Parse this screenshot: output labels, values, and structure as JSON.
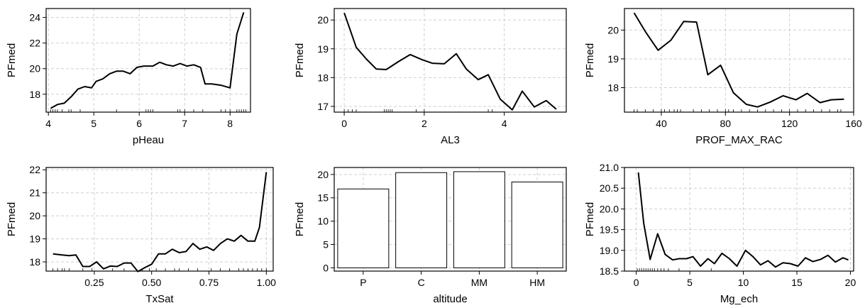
{
  "chart_data": [
    {
      "type": "line",
      "xlabel": "pHeau",
      "ylabel": "PFmed",
      "xlim": [
        3.95,
        8.45
      ],
      "ylim": [
        16.6,
        24.7
      ],
      "xticks": [
        4,
        5,
        6,
        7,
        8
      ],
      "yticks": [
        18,
        20,
        22,
        24
      ],
      "grid": true,
      "x": [
        4.05,
        4.2,
        4.35,
        4.5,
        4.65,
        4.8,
        4.95,
        5.05,
        5.2,
        5.35,
        5.5,
        5.65,
        5.8,
        5.95,
        6.1,
        6.3,
        6.45,
        6.6,
        6.75,
        6.9,
        7.05,
        7.2,
        7.35,
        7.45,
        7.6,
        7.8,
        8.0,
        8.15,
        8.3
      ],
      "y": [
        16.9,
        17.2,
        17.3,
        17.8,
        18.4,
        18.6,
        18.5,
        19.0,
        19.2,
        19.6,
        19.8,
        19.8,
        19.6,
        20.1,
        20.2,
        20.2,
        20.5,
        20.3,
        20.2,
        20.4,
        20.2,
        20.3,
        20.1,
        18.8,
        18.8,
        18.7,
        18.5,
        22.7,
        24.4
      ],
      "rug": [
        4.05,
        4.1,
        4.15,
        4.2,
        4.3,
        4.45,
        4.5,
        4.7,
        5.5,
        6.15,
        6.2,
        6.25,
        6.3,
        6.85,
        6.9,
        7.0,
        7.2,
        7.4,
        7.8,
        7.9,
        8.0,
        8.15,
        8.2,
        8.25,
        8.3,
        8.35
      ]
    },
    {
      "type": "line",
      "xlabel": "AL3",
      "ylabel": "PFmed",
      "xlim": [
        -0.25,
        5.55
      ],
      "ylim": [
        16.8,
        20.4
      ],
      "xticks": [
        0,
        2,
        4
      ],
      "yticks": [
        17,
        18,
        19,
        20
      ],
      "grid": true,
      "x": [
        0.0,
        0.3,
        0.55,
        0.8,
        1.05,
        1.35,
        1.65,
        1.95,
        2.2,
        2.5,
        2.8,
        3.05,
        3.35,
        3.6,
        3.9,
        4.2,
        4.45,
        4.75,
        5.05,
        5.3
      ],
      "y": [
        20.25,
        19.05,
        18.65,
        18.3,
        18.28,
        18.55,
        18.8,
        18.62,
        18.5,
        18.48,
        18.83,
        18.3,
        17.93,
        18.1,
        17.25,
        16.88,
        17.53,
        16.98,
        17.2,
        16.9
      ],
      "rug": [
        0.0,
        0.1,
        0.2,
        0.3,
        1.0,
        1.05,
        1.1,
        1.15,
        1.2,
        1.8,
        2.0,
        3.6,
        3.7
      ]
    },
    {
      "type": "line",
      "xlabel": "PROF_MAX_RAC",
      "ylabel": "PFmed",
      "xlim": [
        17,
        160
      ],
      "ylim": [
        17.15,
        20.75
      ],
      "xticks": [
        40,
        80,
        120,
        160
      ],
      "yticks": [
        18,
        19,
        20
      ],
      "grid": true,
      "x": [
        23,
        30,
        38,
        46,
        54,
        62,
        69,
        77,
        85,
        93,
        100,
        108,
        116,
        124,
        131,
        139,
        146,
        154
      ],
      "y": [
        20.6,
        19.95,
        19.3,
        19.65,
        20.3,
        20.28,
        18.45,
        18.78,
        17.82,
        17.42,
        17.33,
        17.5,
        17.72,
        17.58,
        17.8,
        17.48,
        17.58,
        17.6
      ],
      "rug": [
        23,
        25,
        30,
        35,
        40,
        42,
        45,
        48,
        50,
        52,
        60,
        65,
        70,
        75,
        80,
        82,
        85,
        90,
        95,
        100,
        105,
        110,
        115,
        120,
        125,
        130,
        135,
        140,
        145,
        150,
        152
      ]
    },
    {
      "type": "line",
      "xlabel": "TxSat",
      "ylabel": "PFmed",
      "xlim": [
        0.04,
        1.03
      ],
      "ylim": [
        17.6,
        22.1
      ],
      "xticks": [
        "0.25",
        "0.50",
        "0.75",
        "1.00"
      ],
      "yticks": [
        18,
        19,
        20,
        21,
        22
      ],
      "grid": true,
      "x": [
        0.07,
        0.11,
        0.14,
        0.17,
        0.2,
        0.23,
        0.26,
        0.29,
        0.32,
        0.35,
        0.38,
        0.41,
        0.44,
        0.47,
        0.5,
        0.53,
        0.56,
        0.59,
        0.62,
        0.65,
        0.68,
        0.71,
        0.74,
        0.77,
        0.8,
        0.83,
        0.86,
        0.89,
        0.92,
        0.95,
        0.97,
        1.0
      ],
      "y": [
        18.35,
        18.3,
        18.27,
        18.3,
        17.8,
        17.8,
        18.0,
        17.7,
        17.82,
        17.8,
        17.95,
        17.95,
        17.58,
        17.75,
        17.9,
        18.35,
        18.35,
        18.55,
        18.4,
        18.45,
        18.8,
        18.55,
        18.65,
        18.5,
        18.8,
        19.0,
        18.9,
        19.15,
        18.9,
        18.9,
        19.5,
        21.9
      ],
      "rug": [
        0.07,
        0.09,
        0.11,
        0.12,
        0.14,
        0.2,
        0.24,
        0.33,
        0.38,
        0.46,
        0.49,
        0.52,
        0.56,
        0.6,
        0.62,
        0.66,
        0.7,
        0.76,
        0.8,
        0.84,
        0.88,
        0.9,
        0.92,
        0.94,
        0.96,
        0.98,
        1.0
      ]
    },
    {
      "type": "bar",
      "xlabel": "altitude",
      "ylabel": "PFmed",
      "categories": [
        "P",
        "C",
        "MM",
        "HM"
      ],
      "values": [
        16.9,
        20.4,
        20.6,
        18.4
      ],
      "ylim": [
        -0.7,
        21.5
      ],
      "yticks": [
        0,
        5,
        10,
        15,
        20
      ],
      "grid": true
    },
    {
      "type": "line",
      "xlabel": "Mg_ech",
      "ylabel": "PFmed",
      "xlim": [
        -1.1,
        20.3
      ],
      "ylim": [
        18.5,
        21.0
      ],
      "xticks": [
        0,
        5,
        10,
        15,
        20
      ],
      "yticks": [
        "18.5",
        "19.0",
        "19.5",
        "20.0",
        "20.5",
        "21.0"
      ],
      "grid": true,
      "x": [
        0.2,
        0.7,
        1.3,
        2.0,
        2.7,
        3.4,
        4.0,
        4.7,
        5.3,
        6.0,
        6.7,
        7.3,
        8.0,
        8.7,
        9.4,
        10.2,
        10.9,
        11.6,
        12.3,
        13.0,
        13.7,
        14.4,
        15.1,
        15.8,
        16.5,
        17.2,
        17.9,
        18.6,
        19.3,
        19.8
      ],
      "y": [
        20.88,
        19.65,
        18.78,
        19.4,
        18.9,
        18.77,
        18.8,
        18.8,
        18.85,
        18.62,
        18.8,
        18.68,
        18.93,
        18.8,
        18.62,
        19.0,
        18.85,
        18.65,
        18.75,
        18.6,
        18.7,
        18.68,
        18.62,
        18.82,
        18.73,
        18.78,
        18.88,
        18.72,
        18.82,
        18.77
      ],
      "rug": [
        0.1,
        0.3,
        0.5,
        0.7,
        0.9,
        1.1,
        1.3,
        1.5,
        1.7,
        2.0,
        2.3,
        2.6,
        3.0,
        4.0,
        7.0
      ]
    }
  ]
}
